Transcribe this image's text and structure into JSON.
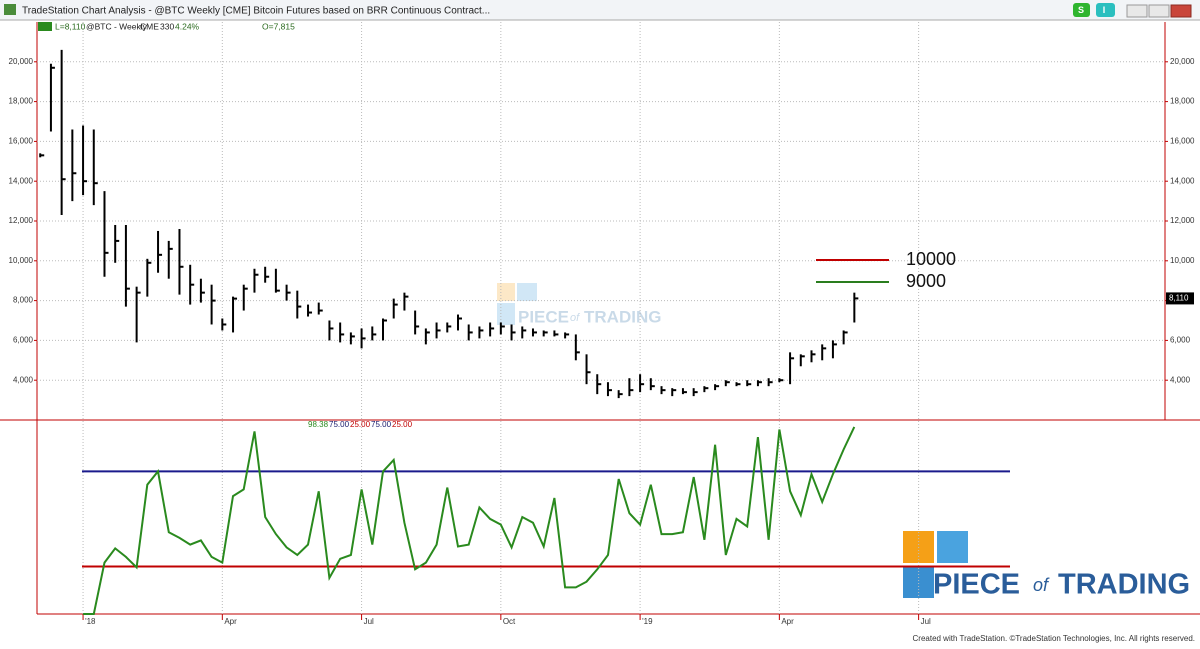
{
  "window": {
    "title": "TradeStation Chart Analysis - @BTC Weekly [CME] Bitcoin Futures based on BRR Continuous Contract...",
    "buttons": [
      "S",
      "I"
    ]
  },
  "header": {
    "last": "L=8,110",
    "symbol": "@BTC - Weekly",
    "exchange": "CME",
    "count": "330",
    "change": "4.24%",
    "open": "O=7,815"
  },
  "chart_data": [
    {
      "type": "ohlc",
      "high": [
        15400,
        19900,
        20600,
        16600,
        16800,
        16600,
        13500,
        11800,
        11800,
        8700,
        10100,
        11500,
        11000,
        11600,
        9800,
        9100,
        8800,
        7100,
        8200,
        8800,
        9600,
        9700,
        9600,
        8800,
        8500,
        7800,
        7900,
        7000,
        6900,
        6400,
        6600,
        6700,
        7100,
        8100,
        8400,
        7500,
        6600,
        6900,
        6900,
        7300,
        6800,
        6700,
        6900,
        6900,
        6800,
        6700,
        6600,
        6500,
        6500,
        6400,
        6300,
        5300,
        4300,
        3900,
        3500,
        4100,
        4300,
        4100,
        3700,
        3600,
        3600,
        3600,
        3700,
        3800,
        4000,
        3900,
        4000,
        4000,
        4100,
        4100,
        5400,
        5300,
        5500,
        5800,
        6000,
        6500,
        8400
      ],
      "low": [
        15200,
        16500,
        12300,
        13000,
        13300,
        12800,
        9200,
        9900,
        7700,
        5900,
        8200,
        9400,
        9100,
        8300,
        7800,
        7900,
        6800,
        6500,
        6400,
        7500,
        8400,
        8900,
        8400,
        8000,
        7100,
        7200,
        7300,
        6000,
        5900,
        5800,
        5600,
        6000,
        6000,
        7100,
        7500,
        6300,
        5800,
        6100,
        6400,
        6500,
        6000,
        6100,
        6200,
        6300,
        6000,
        6100,
        6200,
        6200,
        6200,
        6100,
        5000,
        3800,
        3300,
        3200,
        3100,
        3200,
        3400,
        3500,
        3300,
        3200,
        3300,
        3200,
        3400,
        3500,
        3700,
        3700,
        3700,
        3700,
        3700,
        3900,
        3800,
        4700,
        4900,
        5000,
        5100,
        5800,
        6900
      ],
      "close": [
        15300,
        19700,
        14100,
        14400,
        14000,
        13900,
        10400,
        11000,
        8600,
        8400,
        9900,
        10300,
        10600,
        9700,
        8800,
        8400,
        8000,
        6800,
        8100,
        8600,
        9300,
        9200,
        8500,
        8400,
        7700,
        7400,
        7500,
        6600,
        6300,
        6200,
        6100,
        6300,
        7000,
        7800,
        8200,
        6700,
        6400,
        6500,
        6700,
        7100,
        6400,
        6500,
        6600,
        6700,
        6400,
        6500,
        6400,
        6400,
        6300,
        6300,
        5400,
        4400,
        3800,
        3500,
        3300,
        3500,
        3800,
        3700,
        3500,
        3500,
        3400,
        3400,
        3600,
        3700,
        3900,
        3800,
        3800,
        3900,
        3900,
        4000,
        5100,
        5200,
        5300,
        5600,
        5800,
        6400,
        8110
      ],
      "color": "#000000",
      "xlim": [
        -0.3,
        105
      ],
      "xticks": [
        {
          "value": 4,
          "label": "'18"
        },
        {
          "value": 17,
          "label": "Apr"
        },
        {
          "value": 30,
          "label": "Jul"
        },
        {
          "value": 43,
          "label": "Oct"
        },
        {
          "value": 56,
          "label": "'19"
        },
        {
          "value": 69,
          "label": "Apr"
        },
        {
          "value": 82,
          "label": "Jul"
        }
      ],
      "ylim": [
        2000,
        22000
      ],
      "yticks": [
        {
          "value": 4000,
          "label": "4,000"
        },
        {
          "value": 6000,
          "label": "6,000"
        },
        {
          "value": 8000,
          "label": "8,000"
        },
        {
          "value": 10000,
          "label": "10,000"
        },
        {
          "value": 12000,
          "label": "12,000"
        },
        {
          "value": 14000,
          "label": "14,000"
        },
        {
          "value": 16000,
          "label": "16,000"
        },
        {
          "value": 18000,
          "label": "18,000"
        },
        {
          "value": 20000,
          "label": "20,000"
        }
      ],
      "grid": true,
      "last_price": {
        "value": 8110,
        "label": "8,110"
      },
      "legend": [
        {
          "name": "10000",
          "color": "#c00000"
        },
        {
          "name": "9000",
          "color": "#2a7d1e"
        }
      ]
    },
    {
      "type": "line",
      "values": [
        null,
        null,
        null,
        null,
        0,
        0,
        27,
        34.5,
        30,
        24.5,
        68,
        75,
        43,
        40,
        36.5,
        38.7,
        30,
        27,
        62,
        65.5,
        96,
        51,
        42,
        35,
        31,
        36.5,
        64.5,
        19,
        29,
        31,
        65.5,
        36.5,
        75,
        81,
        48,
        23.5,
        27,
        36.5,
        66.5,
        35.5,
        36.5,
        56,
        50,
        47,
        35,
        51,
        48,
        35.5,
        61,
        14,
        14,
        17,
        23.5,
        31,
        71,
        53,
        47,
        68,
        42,
        42,
        43,
        72,
        39,
        89,
        31,
        50,
        46,
        93,
        39,
        97,
        64.5,
        52,
        73.5,
        59,
        73.5,
        86.5,
        98.38
      ],
      "color": "#2a8a1e",
      "ylim": [
        0,
        102
      ],
      "hlines": [
        {
          "value": 75,
          "color": "#1a1a8c"
        },
        {
          "value": 25,
          "color": "#c00000"
        }
      ],
      "readouts": [
        {
          "label": "98.38",
          "color": "#2a8a1e"
        },
        {
          "label": "75.00",
          "color": "#1a1a6c"
        },
        {
          "label": "25.00",
          "color": "#c00000"
        },
        {
          "label": "75.00",
          "color": "#1a1a6c"
        },
        {
          "label": "25.00",
          "color": "#c00000"
        }
      ]
    }
  ],
  "logo": {
    "word1": "PIECE",
    "word2": "of",
    "word3": "TRADING"
  },
  "footer": "Created with TradeStation. ©TradeStation Technologies, Inc. All rights reserved."
}
